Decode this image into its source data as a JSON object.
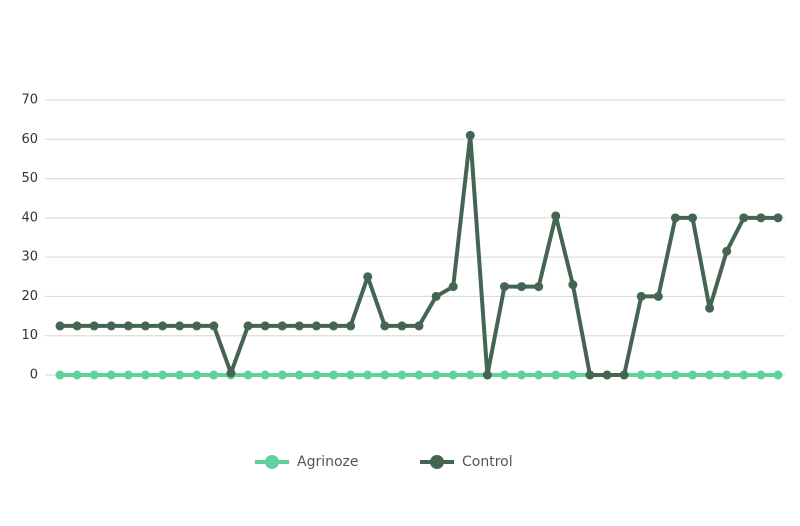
{
  "chart_data": {
    "type": "line",
    "series": [
      {
        "name": "Agrinoze",
        "color": "#5cd398",
        "values": [
          0,
          0,
          0,
          0,
          0,
          0,
          0,
          0,
          0,
          0,
          0,
          0,
          0,
          0,
          0,
          0,
          0,
          0,
          0,
          0,
          0,
          0,
          0,
          0,
          0,
          0,
          0,
          0,
          0,
          0,
          0,
          0,
          0,
          0,
          0,
          0,
          0,
          0,
          0,
          0,
          0,
          0,
          0
        ]
      },
      {
        "name": "Control",
        "color": "#456553",
        "values": [
          12.5,
          12.5,
          12.5,
          12.5,
          12.5,
          12.5,
          12.5,
          12.5,
          12.5,
          12.5,
          0.5,
          12.5,
          12.5,
          12.5,
          12.5,
          12.5,
          12.5,
          12.5,
          25,
          12.5,
          12.5,
          12.5,
          20,
          22.5,
          61,
          0,
          22.5,
          22.5,
          22.5,
          40.5,
          23,
          0,
          0,
          0,
          20,
          20,
          40,
          40,
          17,
          31.5,
          40,
          40,
          40
        ]
      }
    ],
    "ylim": [
      0,
      70
    ],
    "yticks": [
      0,
      10,
      20,
      30,
      40,
      50,
      60,
      70
    ],
    "grid": true,
    "legend": "bottom"
  }
}
